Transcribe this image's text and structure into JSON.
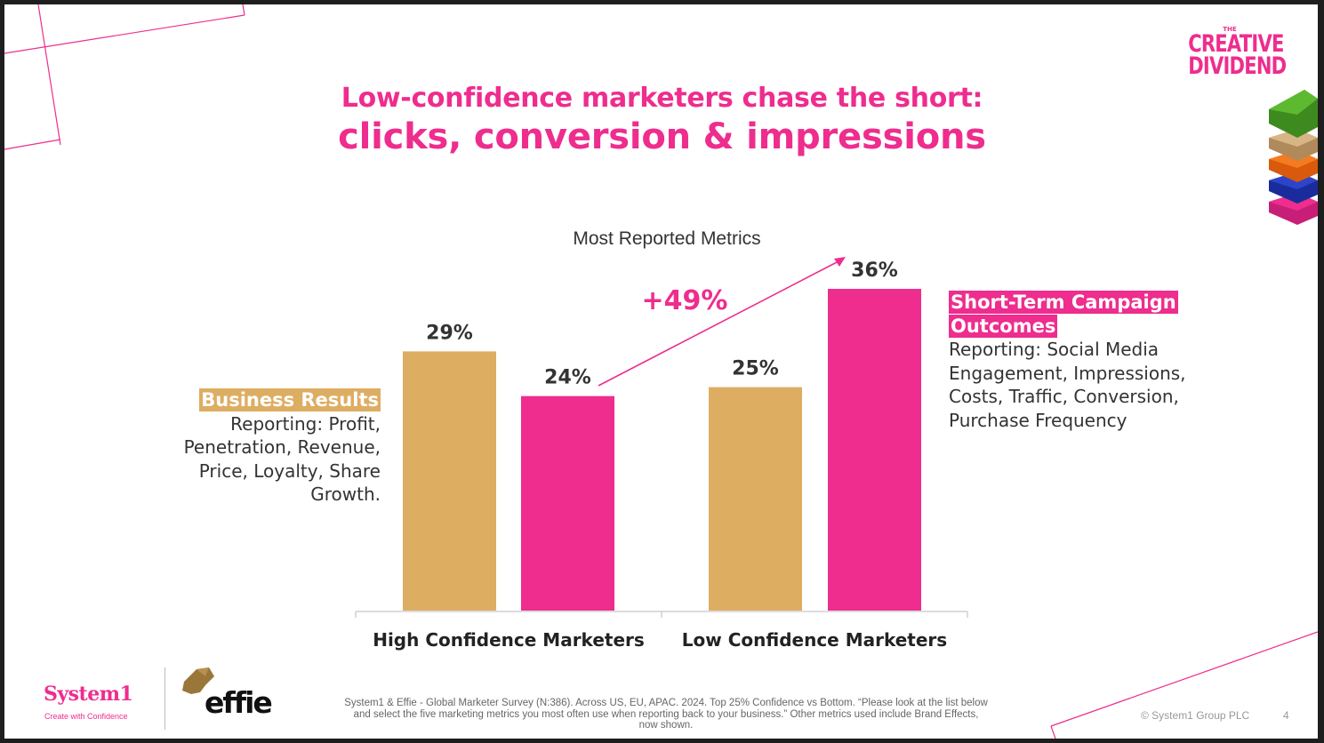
{
  "title": {
    "line1": "Low-confidence marketers chase the short:",
    "line2": "clicks, conversion & impressions"
  },
  "brand": {
    "small": "THE",
    "line1": "CREATIVE",
    "line2": "DIVIDEND"
  },
  "chart_data": {
    "type": "bar",
    "title": "Most Reported Metrics",
    "categories": [
      "High Confidence Marketers",
      "Low Confidence Marketers"
    ],
    "series": [
      {
        "name": "Business Results",
        "values": [
          29,
          25
        ],
        "color": "#ddad62"
      },
      {
        "name": "Short-Term Campaign Outcomes",
        "values": [
          24,
          36
        ],
        "color": "#ee2d8e"
      }
    ],
    "data_labels": [
      "29%",
      "24%",
      "25%",
      "36%"
    ],
    "ylim": [
      0,
      40
    ],
    "grid": false,
    "annotation": "+49%"
  },
  "left_note": {
    "heading": "Business Results",
    "line1": "Reporting: Profit,",
    "line2": "Penetration, Revenue,",
    "line3": "Price, Loyalty, Share",
    "line4": "Growth.",
    "color": "#ddad62"
  },
  "right_note": {
    "heading1": "Short-Term Campaign",
    "heading2": "Outcomes",
    "line1": "Reporting: Social Media",
    "line2": "Engagement, Impressions,",
    "line3": "Costs, Traffic, Conversion,",
    "line4": "Purchase Frequency",
    "color": "#ee2d8e"
  },
  "footer": {
    "logo_system1": "System1",
    "tagline": "Create with Confidence",
    "logo_effie": "effie",
    "source_line1": "System1 & Effie - Global Marketer Survey (N:386). Across US, EU, APAC. 2024. Top 25% Confidence vs Bottom. “Please look at the list below",
    "source_line2": "and select the five marketing metrics you most often use when reporting back to your business.” Other metrics used include Brand Effects,",
    "source_line3": "now shown.",
    "copyright": "© System1 Group PLC",
    "page": "4"
  },
  "colors": {
    "accent": "#ee2d8e",
    "gold": "#ddad62"
  }
}
